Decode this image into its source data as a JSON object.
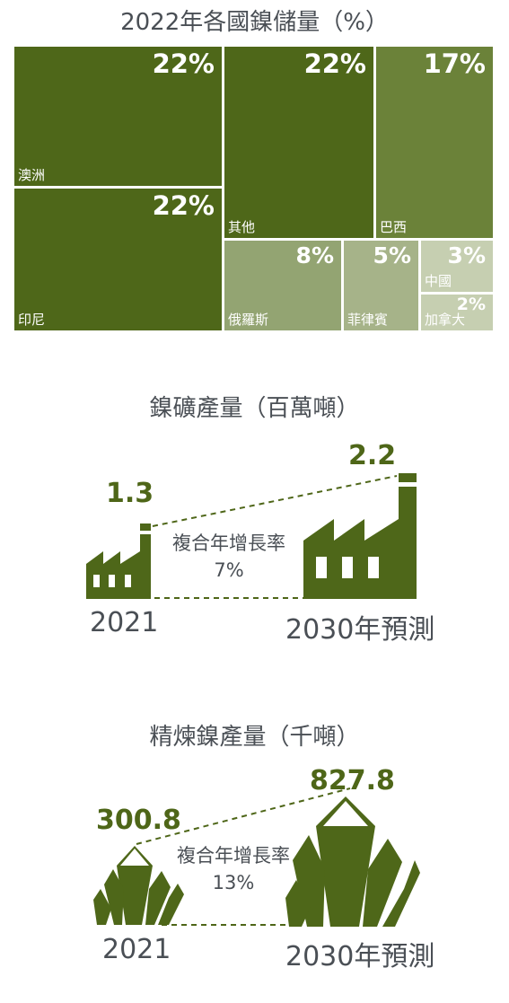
{
  "colors": {
    "dark": "#4e6719",
    "mid": "#6b8239",
    "light1": "#93a472",
    "light2": "#a6b389",
    "light3": "#c6cfb1",
    "text": "#4a4f55",
    "accent": "#4e6618"
  },
  "chart_data": [
    {
      "type": "treemap",
      "title": "2022年各國鎳儲量（%）",
      "items": [
        {
          "label": "澳洲",
          "value": 22,
          "value_text": "22%"
        },
        {
          "label": "印尼",
          "value": 22,
          "value_text": "22%"
        },
        {
          "label": "其他",
          "value": 22,
          "value_text": "22%"
        },
        {
          "label": "巴西",
          "value": 17,
          "value_text": "17%"
        },
        {
          "label": "俄羅斯",
          "value": 8,
          "value_text": "8%"
        },
        {
          "label": "菲律賓",
          "value": 5,
          "value_text": "5%"
        },
        {
          "label": "中國",
          "value": 3,
          "value_text": "3%"
        },
        {
          "label": "加拿大",
          "value": 2,
          "value_text": "2%"
        }
      ]
    },
    {
      "type": "bar",
      "title": "鎳礦產量（百萬噸）",
      "categories": [
        "2021",
        "2030年預測"
      ],
      "values": [
        1.3,
        2.2
      ],
      "value_labels": [
        "1.3",
        "2.2"
      ],
      "cagr_label": "複合年增長率",
      "cagr_value": "7%"
    },
    {
      "type": "bar",
      "title": "精煉鎳產量（千噸）",
      "categories": [
        "2021",
        "2030年預測"
      ],
      "values": [
        300.8,
        827.8
      ],
      "value_labels": [
        "300.8",
        "827.8"
      ],
      "cagr_label": "複合年增長率",
      "cagr_value": "13%"
    }
  ]
}
